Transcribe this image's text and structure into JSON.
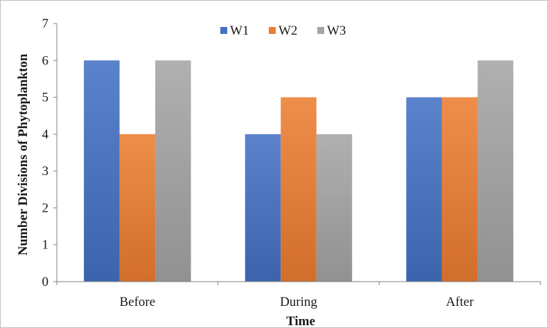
{
  "chart_data": {
    "type": "bar",
    "categories": [
      "Before",
      "During",
      "After"
    ],
    "series": [
      {
        "name": "W1",
        "values": [
          6,
          4,
          5
        ],
        "color": "#4472c4"
      },
      {
        "name": "W2",
        "values": [
          4,
          5,
          5
        ],
        "color": "#ed7d31"
      },
      {
        "name": "W3",
        "values": [
          6,
          4,
          6
        ],
        "color": "#a5a5a5"
      }
    ],
    "xlabel": "Time",
    "ylabel": "Number Divisions of Phytoplankton",
    "ylim": [
      0,
      7
    ],
    "yticks": [
      "0",
      "1",
      "2",
      "3",
      "4",
      "5",
      "6",
      "7"
    ],
    "grid": false,
    "legend_position": "top-center"
  }
}
